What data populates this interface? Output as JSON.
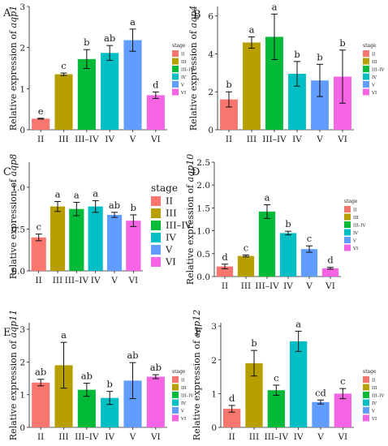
{
  "chart_data": [
    {
      "type": "bar",
      "panel_label": "A",
      "ylabel_prefix": "Relative expression of ",
      "ylabel_gene": "aqp1",
      "categories": [
        "II",
        "III",
        "III–IV",
        "IV",
        "V",
        "VI"
      ],
      "values": [
        0.27,
        1.35,
        1.72,
        1.87,
        2.18,
        0.84
      ],
      "errors": [
        0.01,
        0.03,
        0.23,
        0.18,
        0.27,
        0.08
      ],
      "letters": [
        "e",
        "c",
        "b",
        "ab",
        "a",
        "d"
      ],
      "ylim": [
        0,
        3
      ],
      "yticks": [
        "0",
        "1",
        "2",
        "3"
      ],
      "legend": {
        "title": "stage",
        "entries": [
          "II",
          "III",
          "III–IV",
          "IV",
          "V",
          "VI"
        ],
        "position": "right"
      }
    },
    {
      "type": "bar",
      "panel_label": "B",
      "ylabel_prefix": "Relative expression of ",
      "ylabel_gene": "aqp4",
      "categories": [
        "II",
        "III",
        "III–IV",
        "IV",
        "V",
        "VI"
      ],
      "values": [
        1.6,
        4.6,
        4.9,
        2.95,
        2.6,
        2.8
      ],
      "errors": [
        0.4,
        0.3,
        1.2,
        0.65,
        0.85,
        1.4
      ],
      "letters": [
        "b",
        "a",
        "a",
        "b",
        "b",
        "b"
      ],
      "ylim": [
        0,
        6.5
      ],
      "yticks": [
        "0",
        "2",
        "4",
        "6"
      ],
      "legend": {
        "title": "stage",
        "entries": [
          "II",
          "III",
          "III–IV",
          "IV",
          "V",
          "VI"
        ],
        "position": "right"
      }
    },
    {
      "type": "bar",
      "panel_label": "C",
      "ylabel_prefix": "Relative expression of ",
      "ylabel_gene": "aqp8",
      "categories": [
        "II",
        "III",
        "III–IV",
        "IV",
        "V",
        "VI"
      ],
      "values": [
        0.4,
        0.77,
        0.74,
        0.77,
        0.67,
        0.6
      ],
      "errors": [
        0.04,
        0.06,
        0.08,
        0.07,
        0.03,
        0.07
      ],
      "letters": [
        "c",
        "a",
        "a",
        "a",
        "ab",
        "b"
      ],
      "ylim": [
        0,
        1.3
      ],
      "yticks": [
        "0.0",
        "0.5",
        "1.0"
      ],
      "legend": {
        "title": "stage",
        "entries": [
          "II",
          "III",
          "III–IV",
          "IV",
          "V",
          "VI"
        ],
        "position": "right"
      }
    },
    {
      "type": "bar",
      "panel_label": "D",
      "ylabel_prefix": "Relative expression of ",
      "ylabel_gene": "aqp10",
      "categories": [
        "II",
        "III",
        "III–IV",
        "IV",
        "V",
        "VI"
      ],
      "values": [
        0.22,
        0.45,
        1.42,
        0.95,
        0.6,
        0.18
      ],
      "errors": [
        0.05,
        0.02,
        0.15,
        0.04,
        0.07,
        0.02
      ],
      "letters": [
        "d",
        "c",
        "a",
        "b",
        "c",
        "d"
      ],
      "ylim": [
        0,
        2.5
      ],
      "yticks": [
        "0.0",
        "0.5",
        "1.0",
        "1.5",
        "2.0",
        "2.5"
      ],
      "legend": {
        "title": "stage",
        "entries": [
          "II",
          "III",
          "III–IV",
          "IV",
          "V",
          "VI"
        ],
        "position": "right"
      }
    },
    {
      "type": "bar",
      "panel_label": "E",
      "ylabel_prefix": "Relative expression of ",
      "ylabel_gene": "aqp11",
      "categories": [
        "II",
        "III",
        "III–IV",
        "IV",
        "V",
        "VI"
      ],
      "values": [
        1.37,
        1.9,
        1.15,
        0.9,
        1.43,
        1.55
      ],
      "errors": [
        0.1,
        0.7,
        0.2,
        0.2,
        0.55,
        0.06
      ],
      "letters": [
        "ab",
        "a",
        "ab",
        "b",
        "ab",
        "ab"
      ],
      "ylim": [
        0,
        3.2
      ],
      "yticks": [
        "0",
        "1",
        "2",
        "3"
      ],
      "legend": {
        "title": "stage",
        "entries": [
          "II",
          "III",
          "III–IV",
          "IV",
          "V",
          "VI"
        ],
        "position": "right"
      }
    },
    {
      "type": "bar",
      "panel_label": "F",
      "ylabel_prefix": "Relative expression of ",
      "ylabel_gene": "aqp12",
      "categories": [
        "II",
        "III",
        "III–IV",
        "IV",
        "V",
        "VI"
      ],
      "values": [
        0.55,
        1.9,
        1.1,
        2.55,
        0.75,
        1.0
      ],
      "errors": [
        0.1,
        0.38,
        0.15,
        0.3,
        0.06,
        0.15
      ],
      "letters": [
        "d",
        "b",
        "c",
        "a",
        "cd",
        "c"
      ],
      "ylim": [
        0,
        3.1
      ],
      "yticks": [
        "0",
        "1",
        "2",
        "3"
      ],
      "legend": {
        "title": "stage",
        "entries": [
          "II",
          "III",
          "III–IV",
          "IV",
          "V",
          "VI"
        ],
        "position": "right"
      }
    }
  ],
  "colors": [
    "#f8766d",
    "#b79f00",
    "#00ba38",
    "#00bfc4",
    "#619cff",
    "#f564e3"
  ]
}
